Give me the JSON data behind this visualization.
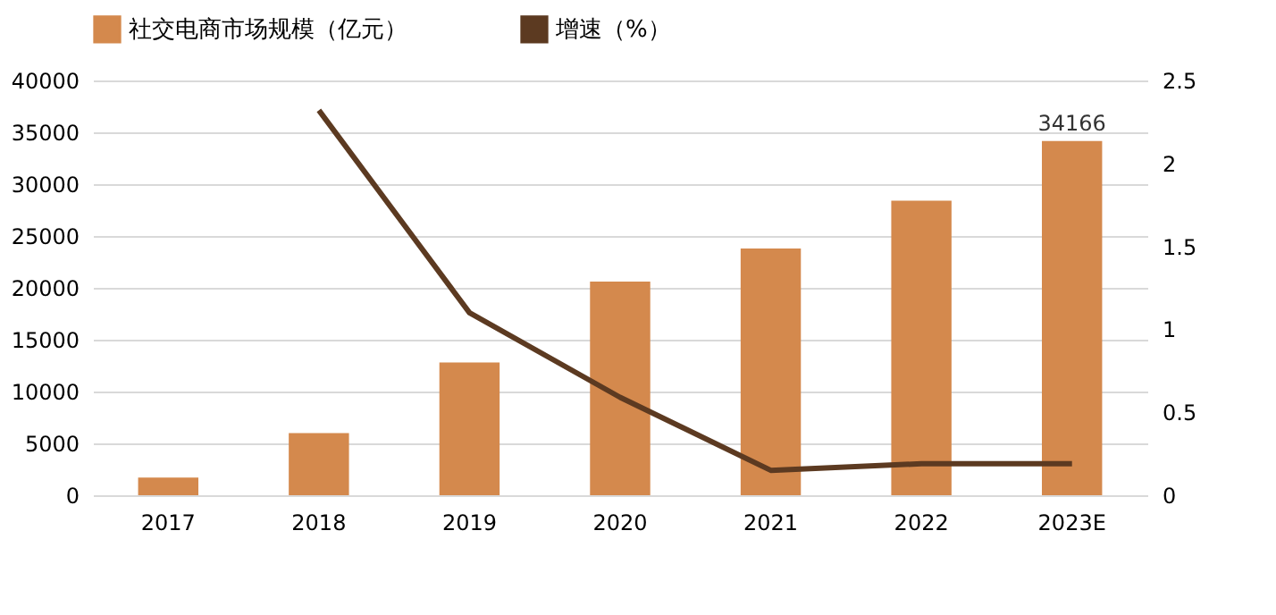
{
  "chart_data": {
    "type": "bar",
    "categories": [
      "2017",
      "2018",
      "2019",
      "2020",
      "2021",
      "2022",
      "2023E"
    ],
    "series": [
      {
        "name": "社交电商市场规模（亿元）",
        "color": "#d4894d",
        "values": [
          1700,
          6000,
          12800,
          20600,
          23800,
          28400,
          34166
        ],
        "value_labels": [
          null,
          null,
          null,
          null,
          null,
          null,
          "34166"
        ]
      },
      {
        "name": "增速（%）",
        "type": "line",
        "axis": "y2",
        "color": "#5c3a21",
        "values": [
          null,
          2.32,
          1.1,
          0.59,
          0.15,
          0.19,
          0.19
        ]
      }
    ],
    "ylim": [
      0,
      40000
    ],
    "yticks": [
      0,
      5000,
      10000,
      15000,
      20000,
      25000,
      30000,
      35000,
      40000
    ],
    "y2lim": [
      0,
      2.5
    ],
    "y2ticks": [
      0,
      {
        "value": 0.5,
        "label": "0.5"
      },
      1,
      {
        "value": 1.5,
        "label": "1.5"
      },
      2,
      {
        "value": 2.5,
        "label": "2.5"
      }
    ],
    "grid": "y",
    "legend": "top"
  }
}
